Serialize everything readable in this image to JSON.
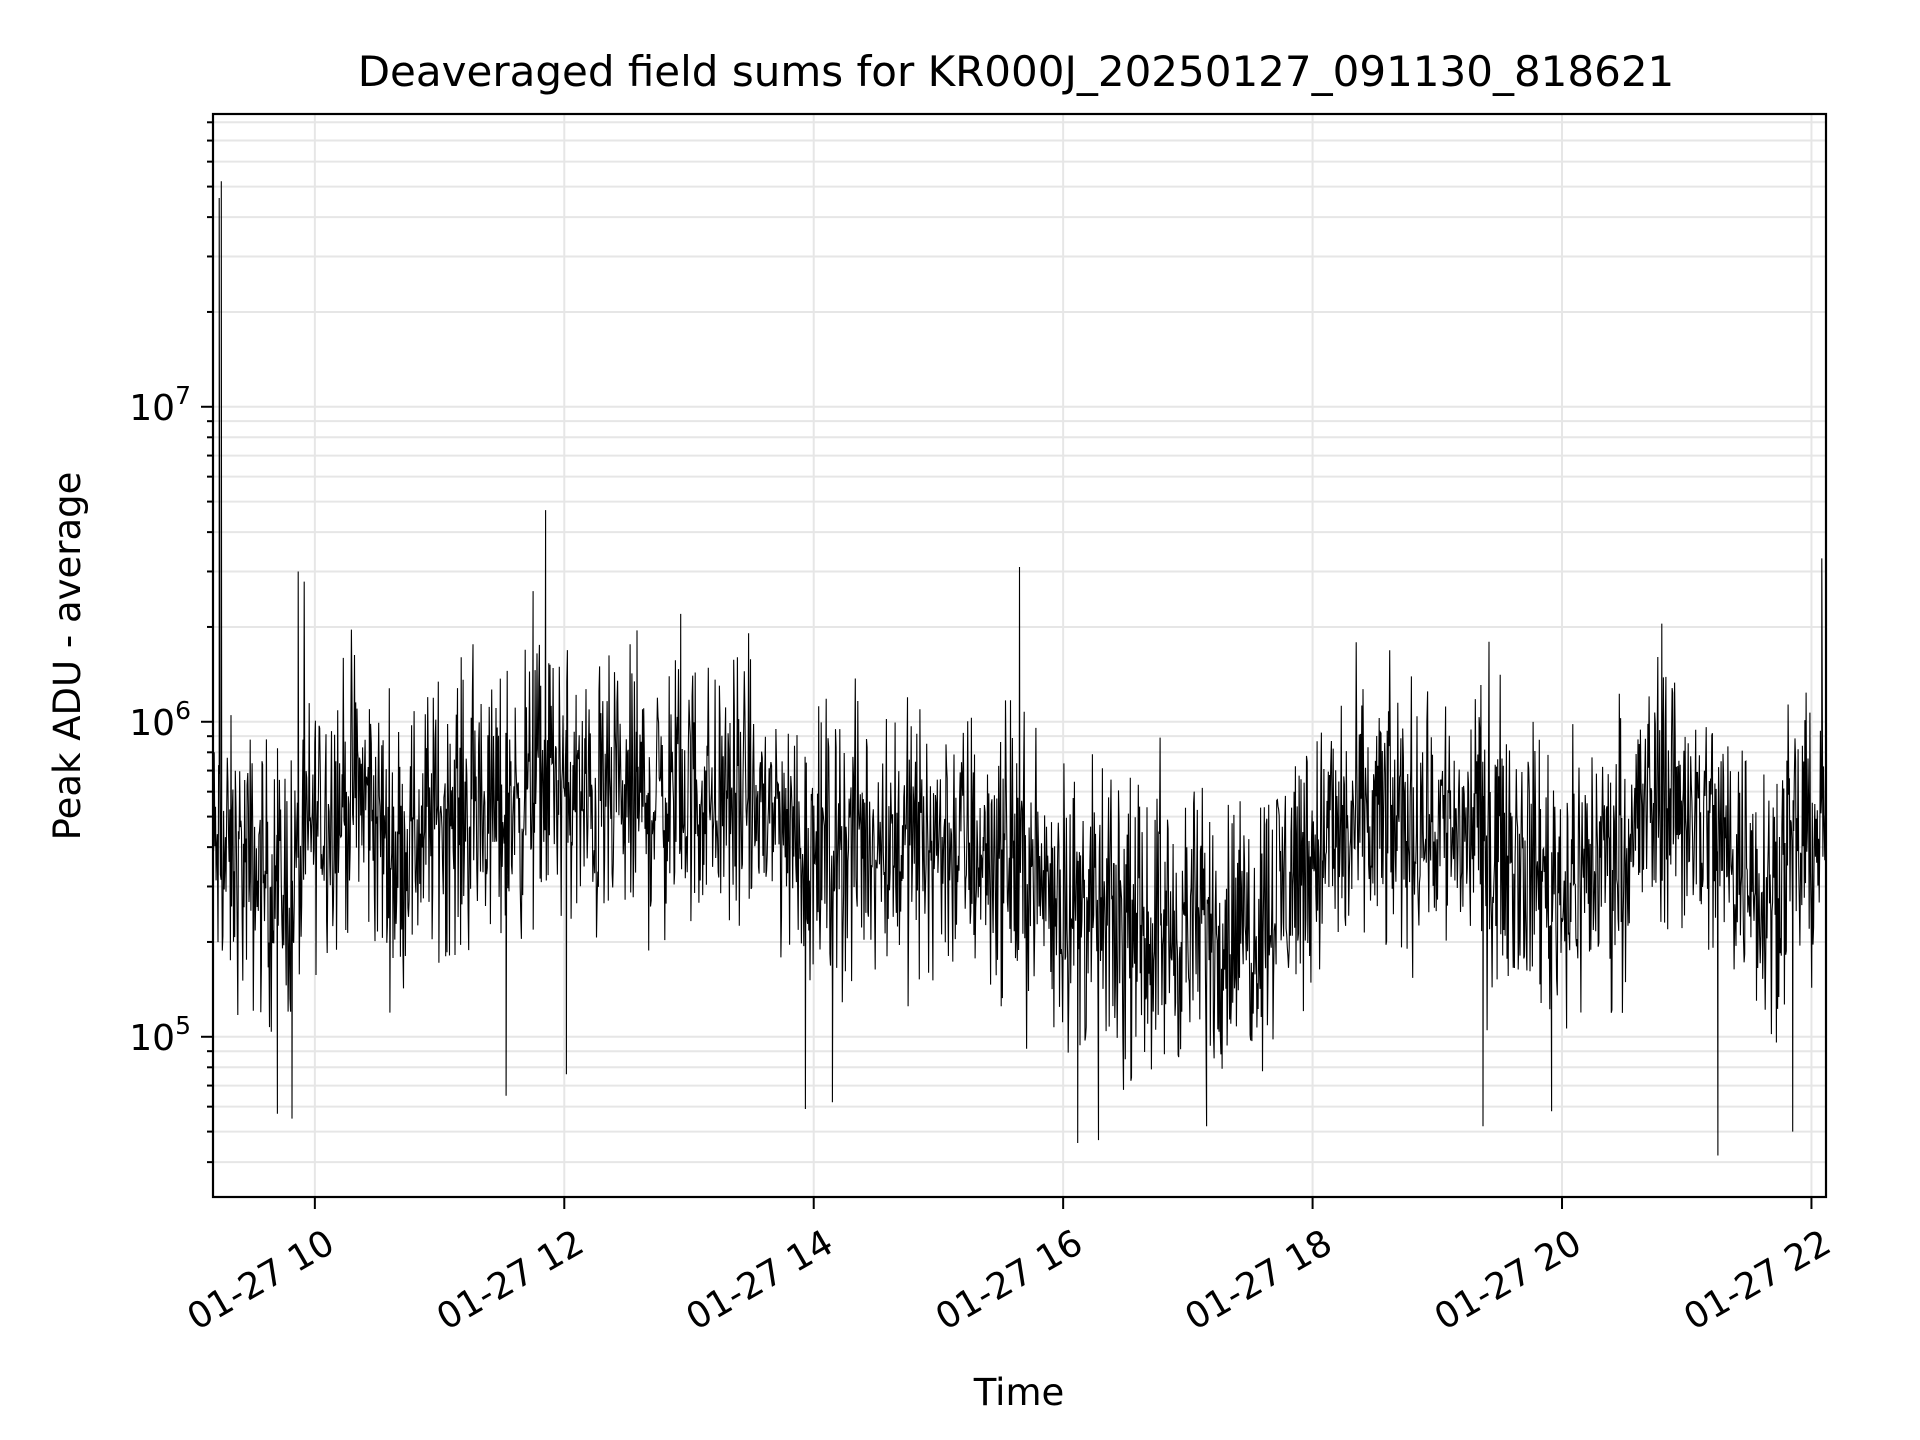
{
  "chart_data": {
    "type": "line",
    "title": "Deaveraged field sums for KR000J_20250127_091130_818621",
    "xlabel": "Time",
    "ylabel": "Peak ADU - average",
    "y_scale": "log",
    "ylim": [
      31000,
      85000000
    ],
    "xlim": [
      "2025-01-27 09:11",
      "2025-01-27 22:07"
    ],
    "grid": true,
    "series_color": "#000000",
    "x_ticks": [
      {
        "value": "2025-01-27 10:00",
        "label": "01-27 10"
      },
      {
        "value": "2025-01-27 12:00",
        "label": "01-27 12"
      },
      {
        "value": "2025-01-27 14:00",
        "label": "01-27 14"
      },
      {
        "value": "2025-01-27 16:00",
        "label": "01-27 16"
      },
      {
        "value": "2025-01-27 18:00",
        "label": "01-27 18"
      },
      {
        "value": "2025-01-27 20:00",
        "label": "01-27 20"
      },
      {
        "value": "2025-01-27 22:00",
        "label": "01-27 22"
      }
    ],
    "y_ticks": [
      {
        "value": 100000,
        "base": "10",
        "exp": "5"
      },
      {
        "value": 1000000,
        "base": "10",
        "exp": "6"
      },
      {
        "value": 10000000,
        "base": "10",
        "exp": "7"
      }
    ],
    "series": [
      {
        "x_start": "2025-01-27 09:11",
        "x_end": "2025-01-27 22:07",
        "baseline_points": [
          [
            "2025-01-27 09:11",
            380000
          ],
          [
            "2025-01-27 09:30",
            330000
          ],
          [
            "2025-01-27 09:50",
            300000
          ],
          [
            "2025-01-27 10:00",
            500000
          ],
          [
            "2025-01-27 10:20",
            600000
          ],
          [
            "2025-01-27 10:40",
            380000
          ],
          [
            "2025-01-27 11:00",
            520000
          ],
          [
            "2025-01-27 11:30",
            520000
          ],
          [
            "2025-01-27 11:55",
            700000
          ],
          [
            "2025-01-27 12:10",
            520000
          ],
          [
            "2025-01-27 12:40",
            560000
          ],
          [
            "2025-01-27 13:00",
            600000
          ],
          [
            "2025-01-27 13:40",
            520000
          ],
          [
            "2025-01-27 14:00",
            380000
          ],
          [
            "2025-01-27 14:30",
            430000
          ],
          [
            "2025-01-27 15:00",
            420000
          ],
          [
            "2025-01-27 15:30",
            380000
          ],
          [
            "2025-01-27 16:00",
            280000
          ],
          [
            "2025-01-27 16:30",
            210000
          ],
          [
            "2025-01-27 17:00",
            220000
          ],
          [
            "2025-01-27 17:30",
            220000
          ],
          [
            "2025-01-27 18:00",
            400000
          ],
          [
            "2025-01-27 18:30",
            480000
          ],
          [
            "2025-01-27 19:00",
            480000
          ],
          [
            "2025-01-27 19:30",
            430000
          ],
          [
            "2025-01-27 20:00",
            300000
          ],
          [
            "2025-01-27 20:30",
            420000
          ],
          [
            "2025-01-27 20:50",
            620000
          ],
          [
            "2025-01-27 21:20",
            400000
          ],
          [
            "2025-01-27 21:40",
            300000
          ],
          [
            "2025-01-27 22:07",
            500000
          ]
        ],
        "spikes": [
          [
            "2025-01-27 09:14",
            46000000
          ],
          [
            "2025-01-27 09:15",
            52000000
          ],
          [
            "2025-01-27 09:52",
            3000000
          ],
          [
            "2025-01-27 11:51",
            4700000
          ],
          [
            "2025-01-27 11:45",
            2600000
          ],
          [
            "2025-01-27 15:39",
            3100000
          ],
          [
            "2025-01-27 22:05",
            3300000
          ],
          [
            "2025-01-27 20:48",
            2050000
          ],
          [
            "2025-01-27 12:35",
            1950000
          ],
          [
            "2025-01-27 12:56",
            2200000
          ],
          [
            "2025-01-27 09:49",
            55000
          ],
          [
            "2025-01-27 09:42",
            57000
          ],
          [
            "2025-01-27 16:07",
            46000
          ],
          [
            "2025-01-27 16:17",
            47000
          ],
          [
            "2025-01-27 17:09",
            52000
          ],
          [
            "2025-01-27 19:22",
            52000
          ],
          [
            "2025-01-27 19:55",
            58000
          ],
          [
            "2025-01-27 21:15",
            42000
          ],
          [
            "2025-01-27 21:51",
            50000
          ],
          [
            "2025-01-27 13:56",
            59000
          ],
          [
            "2025-01-27 14:09",
            62000
          ],
          [
            "2025-01-27 11:32",
            65000
          ],
          [
            "2025-01-27 12:01",
            76000
          ]
        ]
      }
    ]
  }
}
